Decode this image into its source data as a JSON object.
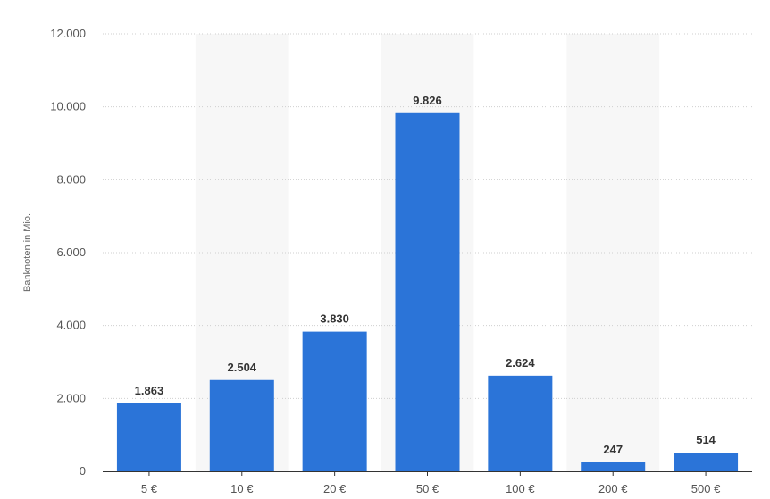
{
  "chart_data": {
    "type": "bar",
    "categories": [
      "5 €",
      "10 €",
      "20 €",
      "50 €",
      "100 €",
      "200 €",
      "500 €"
    ],
    "values": [
      1863,
      2504,
      3830,
      9826,
      2624,
      247,
      514
    ],
    "value_labels": [
      "1.863",
      "2.504",
      "3.830",
      "9.826",
      "2.624",
      "247",
      "514"
    ],
    "title": "",
    "xlabel": "",
    "ylabel": "Banknoten in Mio.",
    "ylim": [
      0,
      12000
    ],
    "yticks": [
      0,
      2000,
      4000,
      6000,
      8000,
      10000,
      12000
    ],
    "ytick_labels": [
      "0",
      "2.000",
      "4.000",
      "6.000",
      "8.000",
      "10.000",
      "12.000"
    ],
    "grid": true,
    "alternating_band_background": true,
    "colors": {
      "bar": "#2b74d8",
      "band": "#f7f7f7",
      "grid": "#cfcfcf",
      "axis": "#333333"
    }
  }
}
